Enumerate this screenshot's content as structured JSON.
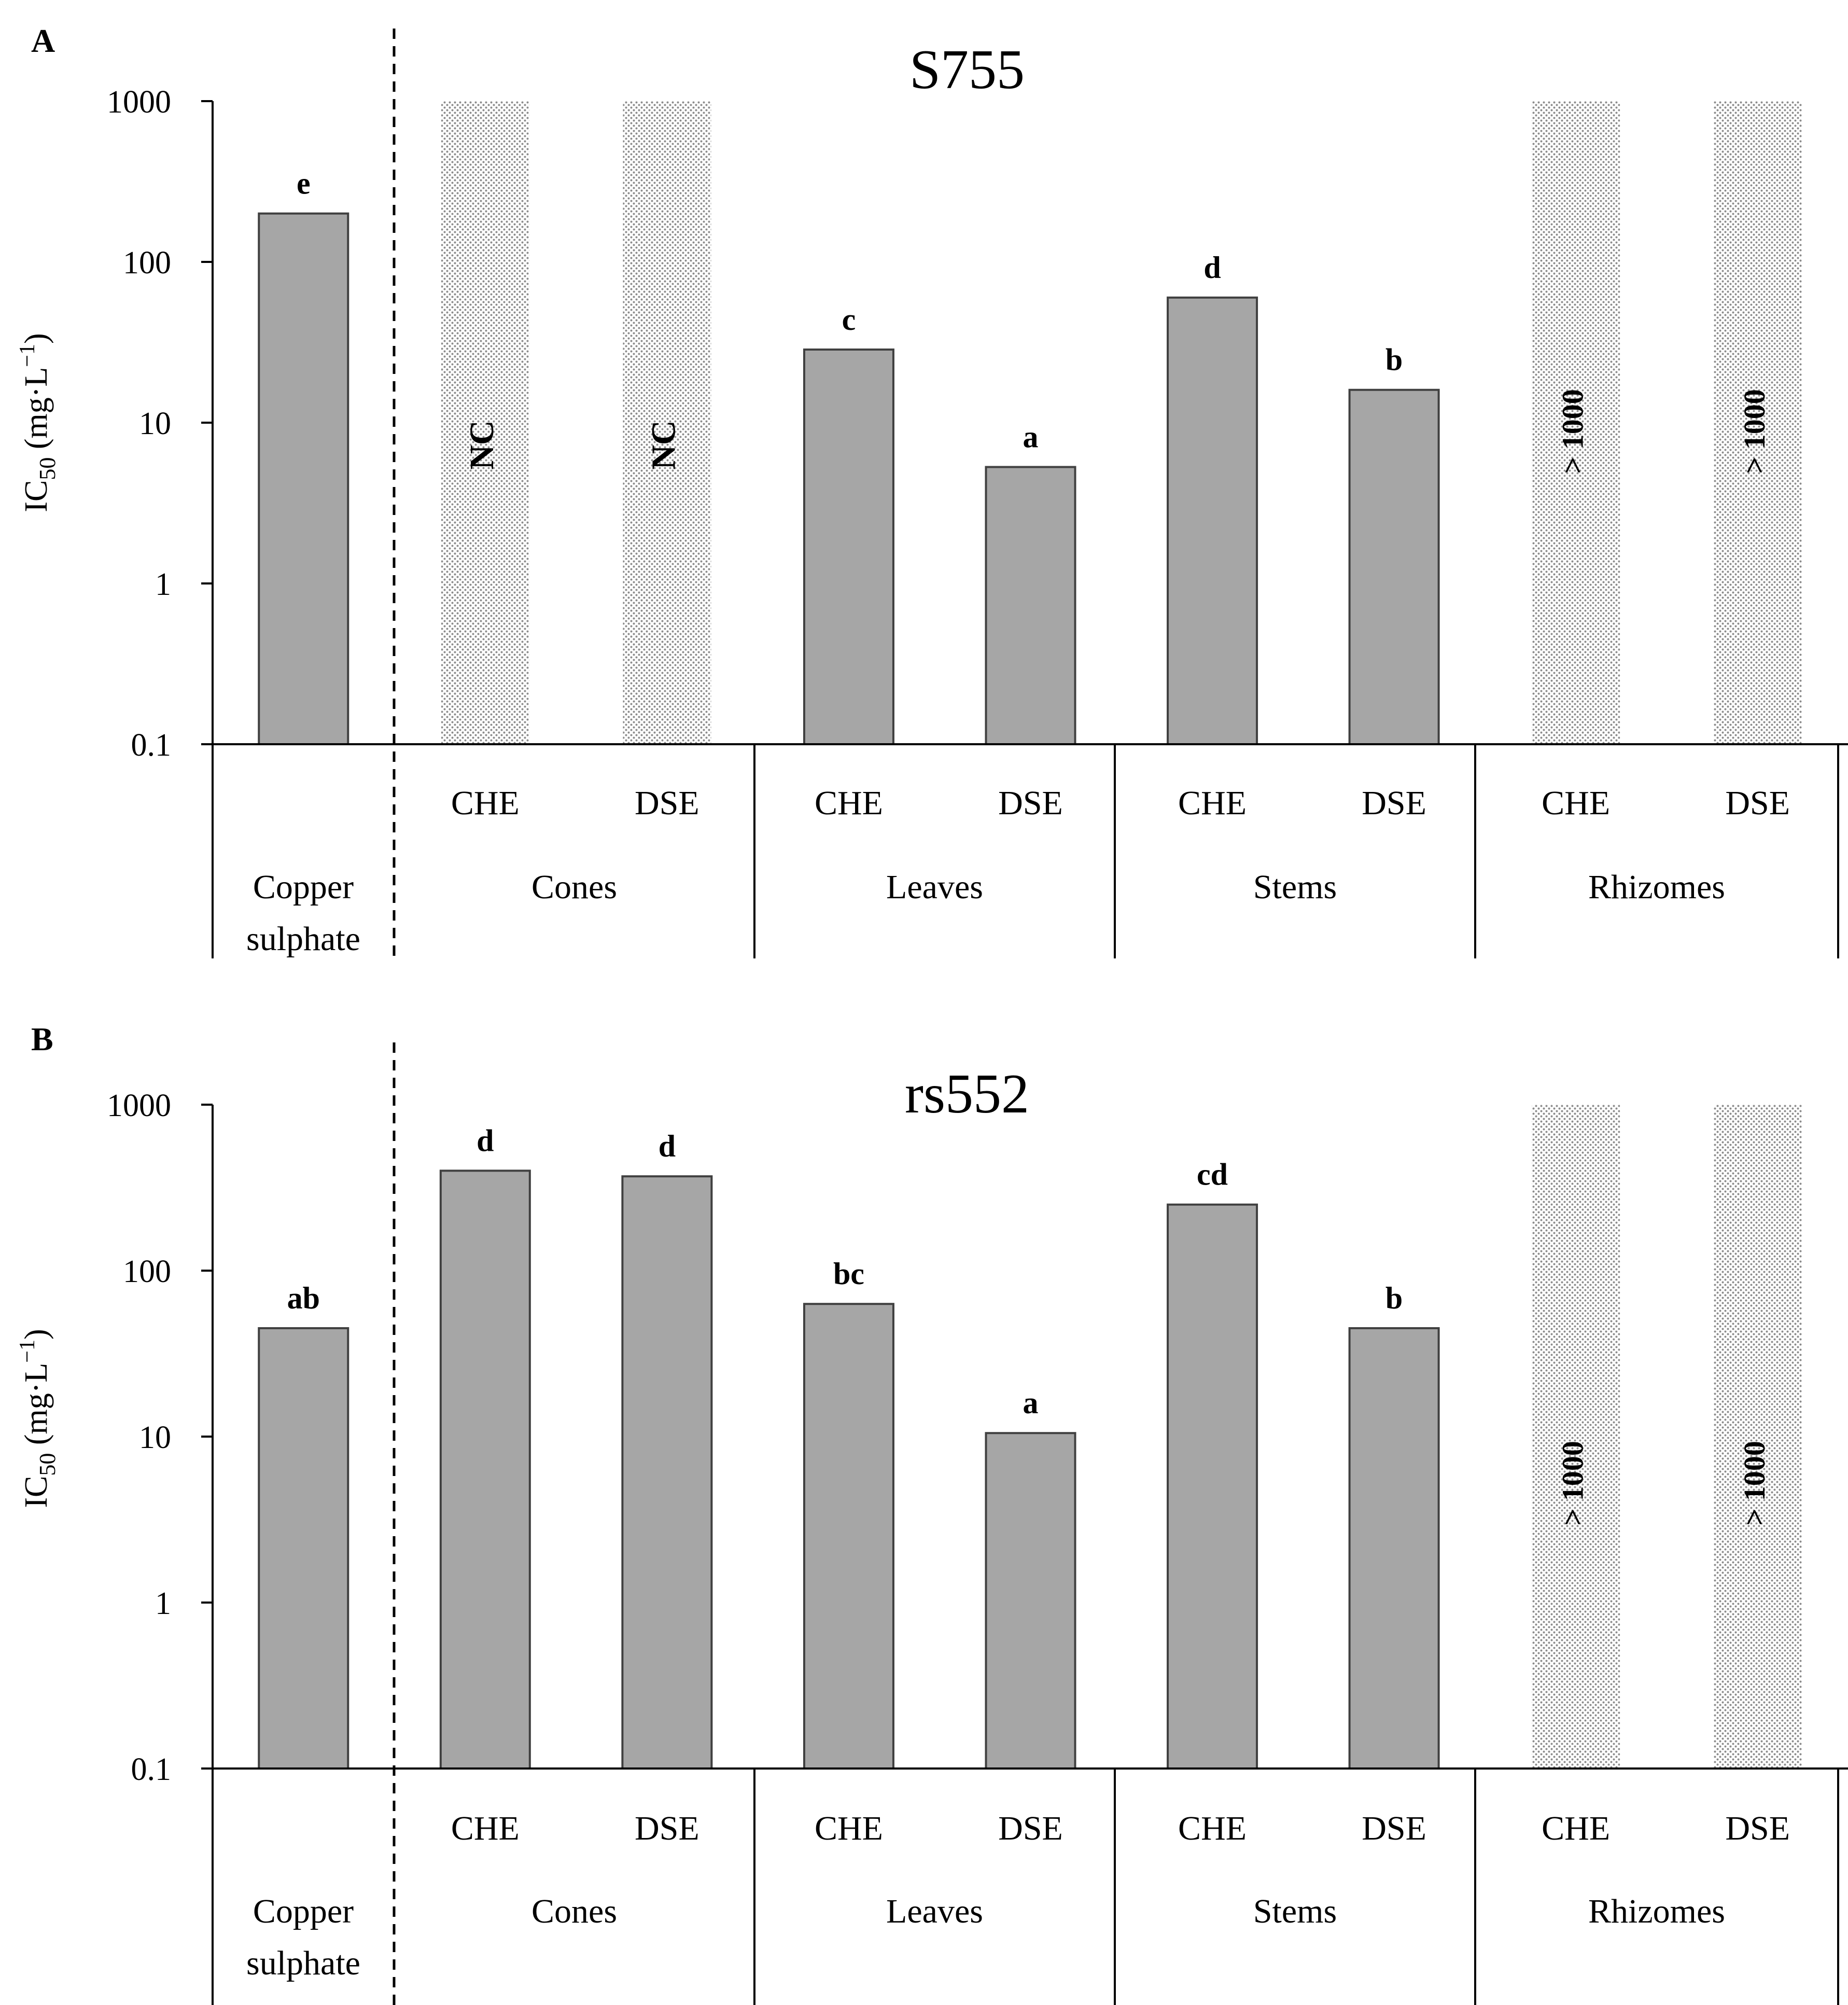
{
  "chart_data": [
    {
      "panel_label": "A",
      "type": "bar",
      "title": "S755",
      "yscale": "log",
      "ylim": [
        0.1,
        1000
      ],
      "yticks": [
        "0.1",
        "1",
        "10",
        "100",
        "1000"
      ],
      "ylabel_main": "IC",
      "ylabel_sub": "50",
      "ylabel_unit": "(mg·L",
      "ylabel_exp": "−1",
      "ylabel_close": ")",
      "bars": [
        {
          "group": "Copper sulphate",
          "extract": "",
          "value": 200,
          "letter": "e",
          "note": ""
        },
        {
          "group": "Cones",
          "extract": "CHE",
          "value": null,
          "letter": "",
          "note": "NC"
        },
        {
          "group": "Cones",
          "extract": "DSE",
          "value": null,
          "letter": "",
          "note": "NC"
        },
        {
          "group": "Leaves",
          "extract": "CHE",
          "value": 28.5,
          "letter": "c",
          "note": ""
        },
        {
          "group": "Leaves",
          "extract": "DSE",
          "value": 5.3,
          "letter": "a",
          "note": ""
        },
        {
          "group": "Stems",
          "extract": "CHE",
          "value": 60,
          "letter": "d",
          "note": ""
        },
        {
          "group": "Stems",
          "extract": "DSE",
          "value": 16,
          "letter": "b",
          "note": ""
        },
        {
          "group": "Rhizomes",
          "extract": "CHE",
          "value": null,
          "letter": "",
          "note": "> 1000"
        },
        {
          "group": "Rhizomes",
          "extract": "DSE",
          "value": null,
          "letter": "",
          "note": "> 1000"
        }
      ],
      "groups": [
        {
          "lines": [
            "Copper",
            "sulphate"
          ]
        },
        {
          "lines": [
            "Cones"
          ]
        },
        {
          "lines": [
            "Leaves"
          ]
        },
        {
          "lines": [
            "Stems"
          ]
        },
        {
          "lines": [
            "Rhizomes"
          ]
        }
      ]
    },
    {
      "panel_label": "B",
      "type": "bar",
      "title": "rs552",
      "yscale": "log",
      "ylim": [
        0.1,
        1000
      ],
      "yticks": [
        "0.1",
        "1",
        "10",
        "100",
        "1000"
      ],
      "ylabel_main": "IC",
      "ylabel_sub": "50",
      "ylabel_unit": "(mg·L",
      "ylabel_exp": "−1",
      "ylabel_close": ")",
      "bars": [
        {
          "group": "Copper sulphate",
          "extract": "",
          "value": 45,
          "letter": "ab",
          "note": ""
        },
        {
          "group": "Cones",
          "extract": "CHE",
          "value": 400,
          "letter": "d",
          "note": ""
        },
        {
          "group": "Cones",
          "extract": "DSE",
          "value": 370,
          "letter": "d",
          "note": ""
        },
        {
          "group": "Leaves",
          "extract": "CHE",
          "value": 63,
          "letter": "bc",
          "note": ""
        },
        {
          "group": "Leaves",
          "extract": "DSE",
          "value": 10.5,
          "letter": "a",
          "note": ""
        },
        {
          "group": "Stems",
          "extract": "CHE",
          "value": 250,
          "letter": "cd",
          "note": ""
        },
        {
          "group": "Stems",
          "extract": "DSE",
          "value": 45,
          "letter": "b",
          "note": ""
        },
        {
          "group": "Rhizomes",
          "extract": "CHE",
          "value": null,
          "letter": "",
          "note": "> 1000"
        },
        {
          "group": "Rhizomes",
          "extract": "DSE",
          "value": null,
          "letter": "",
          "note": "> 1000"
        }
      ],
      "groups": [
        {
          "lines": [
            "Copper",
            "sulphate"
          ]
        },
        {
          "lines": [
            "Cones"
          ]
        },
        {
          "lines": [
            "Leaves"
          ]
        },
        {
          "lines": [
            "Stems"
          ]
        },
        {
          "lines": [
            "Rhizomes"
          ]
        }
      ]
    }
  ],
  "colors": {
    "bar_fill": "#a6a6a6",
    "bar_stroke": "#404040",
    "hatch_dot": "#8c8c8c",
    "axis": "#000000"
  }
}
